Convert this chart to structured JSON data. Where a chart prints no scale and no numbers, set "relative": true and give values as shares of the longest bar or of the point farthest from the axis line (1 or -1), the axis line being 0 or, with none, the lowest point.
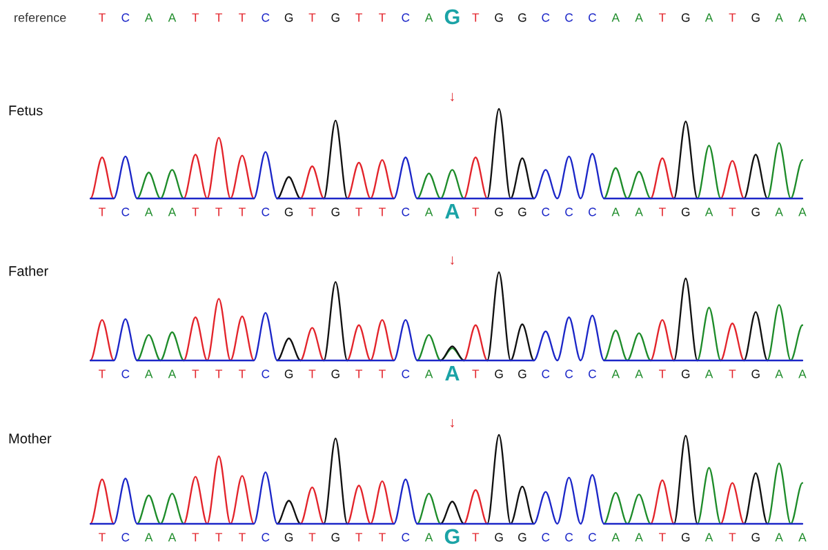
{
  "chart_data": [
    {
      "type": "other",
      "title": "reference",
      "categories": [
        null,
        "T",
        null,
        "C",
        null,
        "A",
        null,
        "A",
        null,
        "T",
        null,
        "T",
        null,
        "T",
        null,
        "C",
        null,
        "G",
        null,
        "T",
        null,
        "G",
        null,
        "T",
        null,
        "T",
        null,
        "C",
        null,
        "A",
        null,
        "G",
        null,
        "T",
        null,
        "G",
        null,
        "G",
        null,
        "C",
        null,
        "C",
        null,
        "C",
        null,
        "A",
        null,
        "A",
        null,
        "T",
        null,
        "G",
        null,
        "A",
        null,
        "T",
        null,
        "G",
        null,
        "A",
        null,
        "A"
      ]
    },
    {
      "type": "line",
      "title": "Fetus",
      "relative": true,
      "categories": [
        null,
        "T",
        null,
        "C",
        null,
        "A",
        null,
        "A",
        null,
        "T",
        null,
        "T",
        null,
        "T",
        null,
        "C",
        null,
        "G",
        null,
        "T",
        null,
        "G",
        null,
        "T",
        null,
        "T",
        null,
        "C",
        null,
        "A",
        null,
        "A",
        null,
        "T",
        null,
        "G",
        null,
        "G",
        null,
        "C",
        null,
        "C",
        null,
        "C",
        null,
        "A",
        null,
        "A",
        null,
        "T",
        null,
        "G",
        null,
        "A",
        null,
        "T",
        null,
        "G",
        null,
        "A",
        null,
        "A"
      ],
      "annotations": [
        "↓"
      ],
      "series": [
        {
          "color": "#e3242b",
          "values": [
            0,
            0.46,
            0,
            null,
            null,
            null,
            null,
            null,
            0,
            0.49,
            0,
            0.68,
            0,
            0.48,
            0,
            null,
            null,
            null,
            0,
            0.36,
            0,
            null,
            0,
            0.4,
            0,
            0.43,
            0,
            null,
            null,
            null,
            null,
            null,
            0,
            0.46,
            0,
            null,
            null,
            null,
            null,
            null,
            null,
            null,
            null,
            null,
            null,
            null,
            null,
            null,
            0,
            0.45,
            0,
            null,
            null,
            null,
            0,
            0.42,
            0,
            null,
            null,
            null,
            null,
            null
          ]
        },
        {
          "color": "#1e8c2a",
          "values": [
            null,
            null,
            null,
            null,
            0,
            0.29,
            0,
            0.32,
            0,
            null,
            null,
            null,
            null,
            null,
            null,
            null,
            null,
            null,
            null,
            null,
            null,
            null,
            null,
            null,
            null,
            null,
            null,
            null,
            0,
            0.28,
            0,
            0.32,
            0,
            null,
            null,
            null,
            null,
            null,
            null,
            null,
            null,
            null,
            null,
            null,
            0,
            0.34,
            0,
            0.3,
            0,
            null,
            null,
            null,
            0,
            0.59,
            0,
            null,
            null,
            null,
            0,
            0.62,
            0,
            0.43
          ]
        },
        {
          "color": "#111111",
          "values": [
            null,
            null,
            null,
            null,
            null,
            null,
            null,
            null,
            null,
            null,
            null,
            null,
            null,
            null,
            null,
            null,
            0,
            0.24,
            0,
            null,
            0,
            0.87,
            0,
            null,
            null,
            null,
            null,
            null,
            null,
            null,
            null,
            null,
            null,
            null,
            0,
            1,
            0,
            0.45,
            0,
            null,
            null,
            null,
            null,
            null,
            null,
            null,
            null,
            null,
            null,
            null,
            0,
            0.86,
            0,
            null,
            null,
            null,
            0,
            0.49,
            0,
            null,
            null,
            null
          ]
        },
        {
          "color": "#1c27c8",
          "values": [
            0,
            0,
            0,
            0.47,
            0,
            0,
            0,
            0,
            0,
            0,
            0,
            0,
            0,
            0,
            0,
            0.52,
            0,
            0,
            0,
            0,
            0,
            0,
            0,
            0,
            0,
            0,
            0,
            0.46,
            0,
            0,
            0,
            0,
            0,
            0,
            0,
            0,
            0,
            0,
            0,
            0.32,
            0,
            0.47,
            0,
            0.5,
            0,
            0,
            0,
            0,
            0,
            0,
            0,
            0,
            0,
            0,
            0,
            0,
            0,
            0,
            0,
            0,
            0,
            0
          ]
        }
      ]
    },
    {
      "type": "line",
      "title": "Father",
      "relative": true,
      "categories": [
        null,
        "T",
        null,
        "C",
        null,
        "A",
        null,
        "A",
        null,
        "T",
        null,
        "T",
        null,
        "T",
        null,
        "C",
        null,
        "G",
        null,
        "T",
        null,
        "G",
        null,
        "T",
        null,
        "T",
        null,
        "C",
        null,
        "A",
        null,
        "A",
        null,
        "T",
        null,
        "G",
        null,
        "G",
        null,
        "C",
        null,
        "C",
        null,
        "C",
        null,
        "A",
        null,
        "A",
        null,
        "T",
        null,
        "G",
        null,
        "A",
        null,
        "T",
        null,
        "G",
        null,
        "A",
        null,
        "A"
      ],
      "annotations": [
        "↓"
      ],
      "series": [
        {
          "color": "#e3242b",
          "values": [
            0,
            0.46,
            0,
            null,
            null,
            null,
            null,
            null,
            0,
            0.49,
            0,
            0.7,
            0,
            0.5,
            0,
            null,
            null,
            null,
            0,
            0.37,
            0,
            null,
            0,
            0.4,
            0,
            0.46,
            0,
            null,
            null,
            null,
            null,
            null,
            0,
            0.4,
            0,
            null,
            null,
            null,
            null,
            null,
            null,
            null,
            null,
            null,
            null,
            null,
            null,
            null,
            0,
            0.46,
            0,
            null,
            null,
            null,
            0,
            0.42,
            0,
            null,
            null,
            null,
            null,
            null
          ]
        },
        {
          "color": "#1e8c2a",
          "values": [
            null,
            null,
            null,
            null,
            0,
            0.29,
            0,
            0.32,
            0,
            null,
            null,
            null,
            null,
            null,
            null,
            null,
            null,
            null,
            null,
            null,
            null,
            null,
            null,
            null,
            null,
            null,
            null,
            null,
            0,
            0.29,
            0,
            0.14,
            0,
            null,
            null,
            null,
            null,
            null,
            null,
            null,
            null,
            null,
            null,
            null,
            0,
            0.34,
            0,
            0.31,
            0,
            null,
            null,
            null,
            0,
            0.6,
            0,
            null,
            null,
            null,
            0,
            0.63,
            0,
            0.4
          ]
        },
        {
          "color": "#111111",
          "values": [
            null,
            null,
            null,
            null,
            null,
            null,
            null,
            null,
            null,
            null,
            null,
            null,
            null,
            null,
            null,
            null,
            0,
            0.25,
            0,
            null,
            0,
            0.89,
            0,
            null,
            null,
            null,
            null,
            null,
            null,
            null,
            0,
            0.16,
            0,
            null,
            0,
            1,
            0,
            0.41,
            0,
            null,
            null,
            null,
            null,
            null,
            null,
            null,
            null,
            null,
            null,
            null,
            0,
            0.93,
            0,
            null,
            null,
            null,
            0,
            0.55,
            0,
            null,
            null,
            null
          ]
        },
        {
          "color": "#1c27c8",
          "values": [
            0,
            0,
            0,
            0.47,
            0,
            0,
            0,
            0,
            0,
            0,
            0,
            0,
            0,
            0,
            0,
            0.54,
            0,
            0,
            0,
            0,
            0,
            0,
            0,
            0,
            0,
            0,
            0,
            0.46,
            0,
            0,
            0,
            0,
            0,
            0,
            0,
            0,
            0,
            0,
            0,
            0.33,
            0,
            0.49,
            0,
            0.51,
            0,
            0,
            0,
            0,
            0,
            0,
            0,
            0,
            0,
            0,
            0,
            0,
            0,
            0,
            0,
            0,
            0,
            0
          ]
        }
      ]
    },
    {
      "type": "line",
      "title": "Mother",
      "relative": true,
      "categories": [
        null,
        "T",
        null,
        "C",
        null,
        "A",
        null,
        "A",
        null,
        "T",
        null,
        "T",
        null,
        "T",
        null,
        "C",
        null,
        "G",
        null,
        "T",
        null,
        "G",
        null,
        "T",
        null,
        "T",
        null,
        "C",
        null,
        "A",
        null,
        "G",
        null,
        "T",
        null,
        "G",
        null,
        "G",
        null,
        "C",
        null,
        "C",
        null,
        "C",
        null,
        "A",
        null,
        "A",
        null,
        "T",
        null,
        "G",
        null,
        "A",
        null,
        "T",
        null,
        "G",
        null,
        "A",
        null,
        "A"
      ],
      "annotations": [
        "↓"
      ],
      "series": [
        {
          "color": "#e3242b",
          "values": [
            0,
            0.5,
            0,
            null,
            null,
            null,
            null,
            null,
            0,
            0.53,
            0,
            0.76,
            0,
            0.54,
            0,
            null,
            null,
            null,
            0,
            0.41,
            0,
            null,
            0,
            0.43,
            0,
            0.48,
            0,
            null,
            null,
            null,
            null,
            null,
            0,
            0.38,
            0,
            null,
            null,
            null,
            null,
            null,
            null,
            null,
            null,
            null,
            null,
            null,
            null,
            null,
            0,
            0.49,
            0,
            null,
            null,
            null,
            0,
            0.46,
            0,
            null,
            null,
            null,
            null,
            null
          ]
        },
        {
          "color": "#1e8c2a",
          "values": [
            null,
            null,
            null,
            null,
            0,
            0.32,
            0,
            0.34,
            0,
            null,
            null,
            null,
            null,
            null,
            null,
            null,
            null,
            null,
            null,
            null,
            null,
            null,
            null,
            null,
            null,
            null,
            null,
            null,
            0,
            0.34,
            0,
            null,
            null,
            null,
            null,
            null,
            null,
            null,
            null,
            null,
            null,
            null,
            null,
            null,
            0,
            0.35,
            0,
            0.33,
            0,
            null,
            null,
            null,
            0,
            0.63,
            0,
            null,
            null,
            null,
            0,
            0.68,
            0,
            0.46
          ]
        },
        {
          "color": "#111111",
          "values": [
            null,
            null,
            null,
            null,
            null,
            null,
            null,
            null,
            null,
            null,
            null,
            null,
            null,
            null,
            null,
            null,
            0,
            0.26,
            0,
            null,
            0,
            0.96,
            0,
            null,
            null,
            null,
            null,
            null,
            null,
            null,
            0,
            0.25,
            0,
            null,
            0,
            1,
            0,
            0.42,
            0,
            null,
            null,
            null,
            null,
            null,
            null,
            null,
            null,
            null,
            null,
            null,
            0,
            0.99,
            0,
            null,
            null,
            null,
            0,
            0.57,
            0,
            null,
            null,
            null
          ]
        },
        {
          "color": "#1c27c8",
          "values": [
            0,
            0,
            0,
            0.51,
            0,
            0,
            0,
            0,
            0,
            0,
            0,
            0,
            0,
            0,
            0,
            0.58,
            0,
            0,
            0,
            0,
            0,
            0,
            0,
            0,
            0,
            0,
            0,
            0.5,
            0,
            0,
            0,
            0,
            0,
            0,
            0,
            0,
            0,
            0,
            0,
            0.36,
            0,
            0.52,
            0,
            0.55,
            0,
            0,
            0,
            0,
            0,
            0,
            0,
            0,
            0,
            0,
            0,
            0,
            0,
            0,
            0,
            0,
            0,
            0
          ]
        }
      ]
    }
  ]
}
